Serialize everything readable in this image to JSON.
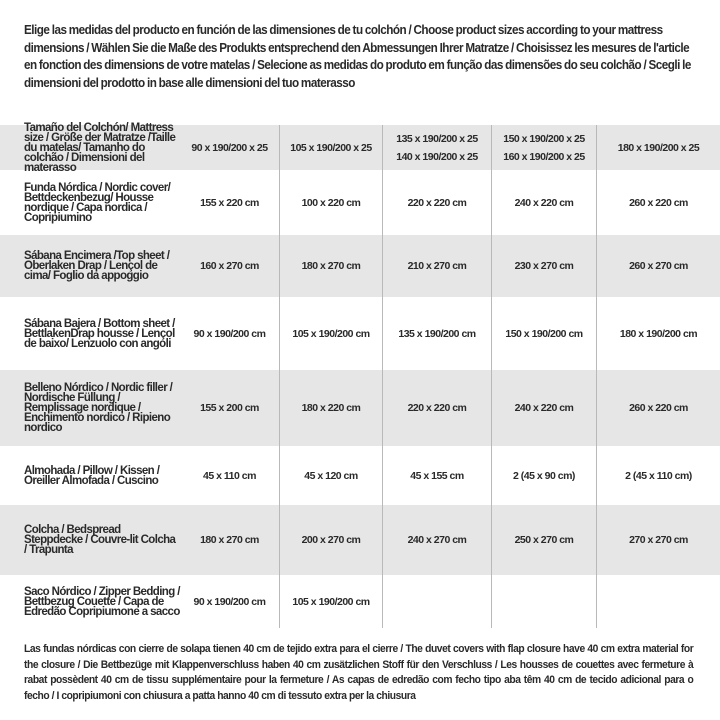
{
  "intro": "Elige las medidas del producto en función de las dimensiones de tu colchón / Choose product sizes according to your mattress dimensions / Wählen Sie die Maße des Produkts entsprechend den Abmessungen Ihrer Matratze / Choisissez les mesures de l'article en fonction des dimensions de votre matelas / Selecione as medidas do produto em função das dimensões do seu colchão / Scegli le dimensioni del prodotto in base alle dimensioni del tuo materasso",
  "table": {
    "header": {
      "label": "Tamaño del Colchón/ Mattress size / Größe der Matratze /Taille du matelas/ Tamanho do colchão / Dimensioni del materasso",
      "columns": [
        [
          "90 x 190/200 x 25"
        ],
        [
          "105 x 190/200 x 25"
        ],
        [
          "135 x 190/200 x 25",
          "140 x 190/200 x 25"
        ],
        [
          "150 x 190/200 x 25",
          "160 x 190/200 x 25"
        ],
        [
          "180 x 190/200 x 25"
        ]
      ]
    },
    "rows": [
      {
        "label": "Funda Nórdica /  Nordic cover/ Bettdeckenbezug/ Housse nordique  / Capa nordica / Copripiumino",
        "values": [
          "155 x 220 cm",
          "100 x 220 cm",
          "220 x 220 cm",
          "240 x 220 cm",
          "260 x 220 cm"
        ]
      },
      {
        "label": "Sábana Encimera /Top sheet / Oberlaken Drap / Lençol de cima/ Foglio da appoggio",
        "values": [
          "160 x 270 cm",
          "180 x 270 cm",
          "210 x 270 cm",
          "230 x 270 cm",
          "260 x 270 cm"
        ]
      },
      {
        "label": "Sábana Bajera / Bottom sheet / BettlakenDrap housse / Lençol de baixo/ Lenzuolo con angoli",
        "values": [
          "90 x 190/200 cm",
          "105 x 190/200 cm",
          "135 x 190/200 cm",
          "150 x 190/200 cm",
          "180 x 190/200 cm"
        ]
      },
      {
        "label": "Belleno Nórdico / Nordic filler / Nordische Füllung / Remplissage nordique / Enchimento nordico / Ripieno nordico",
        "values": [
          "155 x 200 cm",
          "180 x 220 cm",
          "220 x 220 cm",
          "240 x 220 cm",
          "260 x 220 cm"
        ]
      },
      {
        "label": "Almohada  / Pillow / Kissen / Oreiller Almofada / Cuscino",
        "values": [
          "45 x 110 cm",
          "45 x 120 cm",
          "45 x 155 cm",
          "2 (45 x 90 cm)",
          "2 (45 x 110 cm)"
        ]
      },
      {
        "label": "Colcha / Bedspread Steppdecke / Couvre-lit Colcha / Trapunta",
        "values": [
          "180 x 270 cm",
          "200 x 270 cm",
          "240 x 270 cm",
          "250 x 270 cm",
          "270 x 270 cm"
        ]
      },
      {
        "label": "Saco Nórdico / Zipper Bedding / Bettbezug Couette  / Capa de Edredão Copripiumone a sacco",
        "values": [
          "90 x 190/200 cm",
          "105 x 190/200 cm",
          "",
          "",
          ""
        ]
      }
    ]
  },
  "footer": "Las fundas nórdicas con cierre de solapa tienen 40 cm de tejido extra para el cierre  / The duvet covers with flap closure have 40 cm extra material for the closure / Die Bettbezüge mit Klappenverschluss haben 40 cm zusätzlichen Stoff für den Verschluss / Les housses de couettes avec fermeture à rabat possèdent 40 cm de tissu supplémentaire pour la fermeture / As capas de edredão com fecho tipo aba têm 40 cm de tecido adicional para o fecho / I copripiumoni con chiusura a patta hanno 40 cm di tessuto extra per la chiusura",
  "colors": {
    "row_gray": "#e6e6e6",
    "divider": "#b9b9b9",
    "text": "#2a2a2a"
  }
}
